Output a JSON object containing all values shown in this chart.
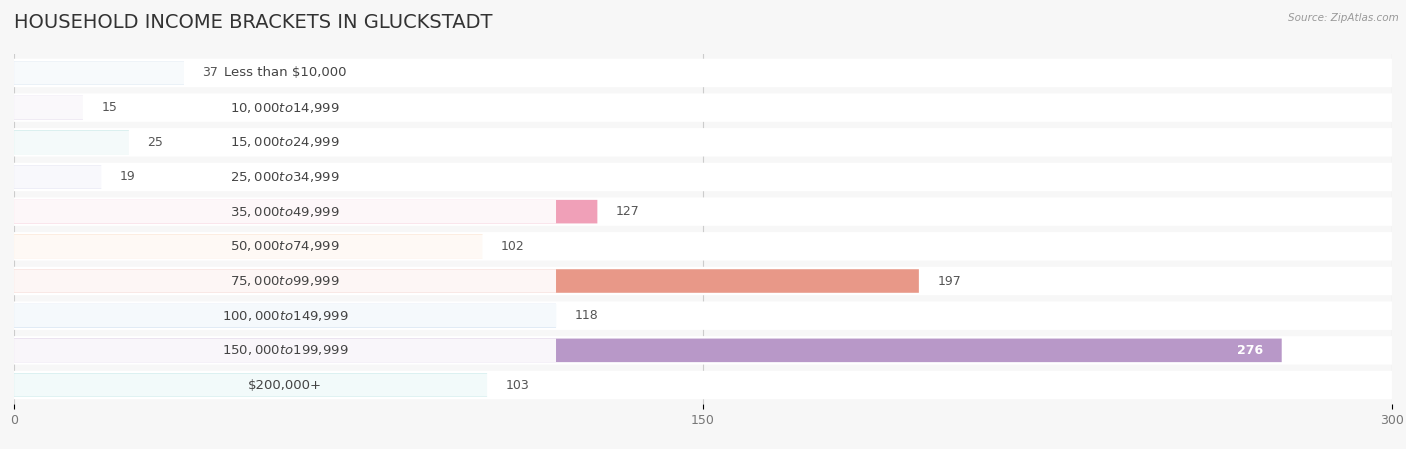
{
  "title": "HOUSEHOLD INCOME BRACKETS IN GLUCKSTADT",
  "source": "Source: ZipAtlas.com",
  "categories": [
    "Less than $10,000",
    "$10,000 to $14,999",
    "$15,000 to $24,999",
    "$25,000 to $34,999",
    "$35,000 to $49,999",
    "$50,000 to $74,999",
    "$75,000 to $99,999",
    "$100,000 to $149,999",
    "$150,000 to $199,999",
    "$200,000+"
  ],
  "values": [
    37,
    15,
    25,
    19,
    127,
    102,
    197,
    118,
    276,
    103
  ],
  "bar_colors": [
    "#a8c4e0",
    "#c8b4d8",
    "#7ec8c4",
    "#b4b4dc",
    "#f0a0b8",
    "#f8c090",
    "#e89888",
    "#90b8dc",
    "#b898c8",
    "#68c4c4"
  ],
  "xlim": [
    0,
    300
  ],
  "xticks": [
    0,
    150,
    300
  ],
  "label_inside_threshold": 200,
  "background_color": "#f7f7f7",
  "row_bg_color": "#ffffff",
  "title_fontsize": 14,
  "label_fontsize": 9.5,
  "tick_fontsize": 9,
  "value_fontsize": 9
}
